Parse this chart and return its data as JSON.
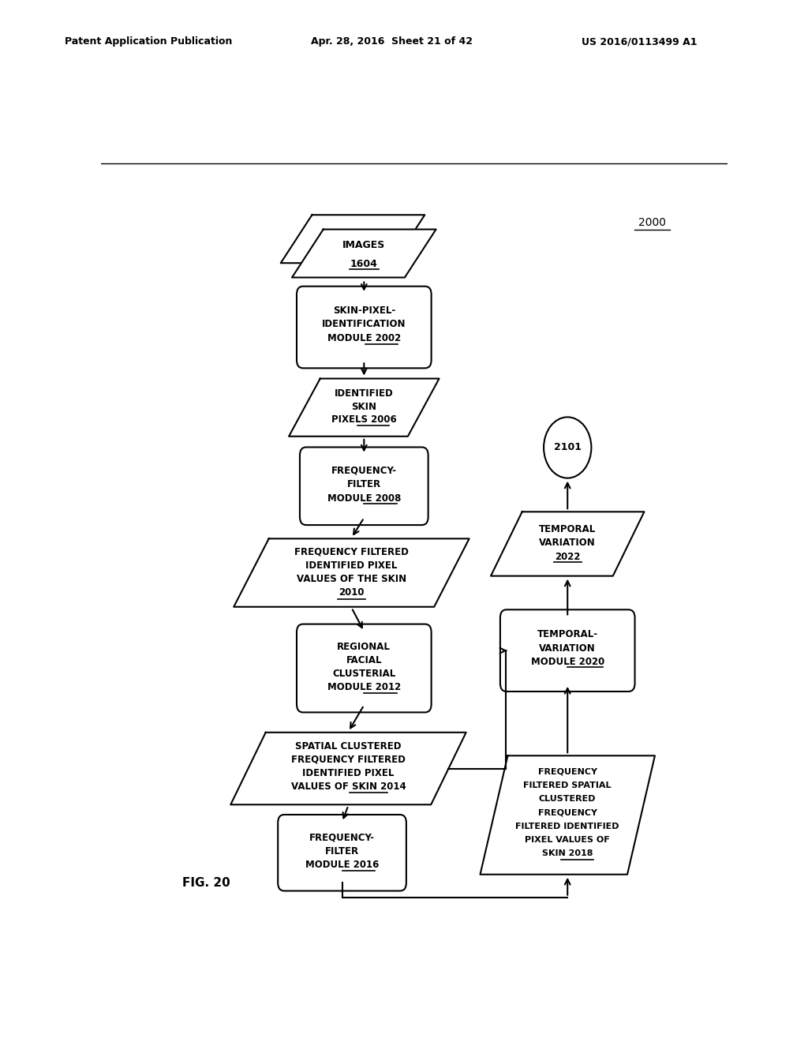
{
  "header_left": "Patent Application Publication",
  "header_mid": "Apr. 28, 2016  Sheet 21 of 42",
  "header_right": "US 2016/0113499 A1",
  "fig_label": "FIG. 20",
  "diagram_number": "2000",
  "background_color": "#ffffff"
}
